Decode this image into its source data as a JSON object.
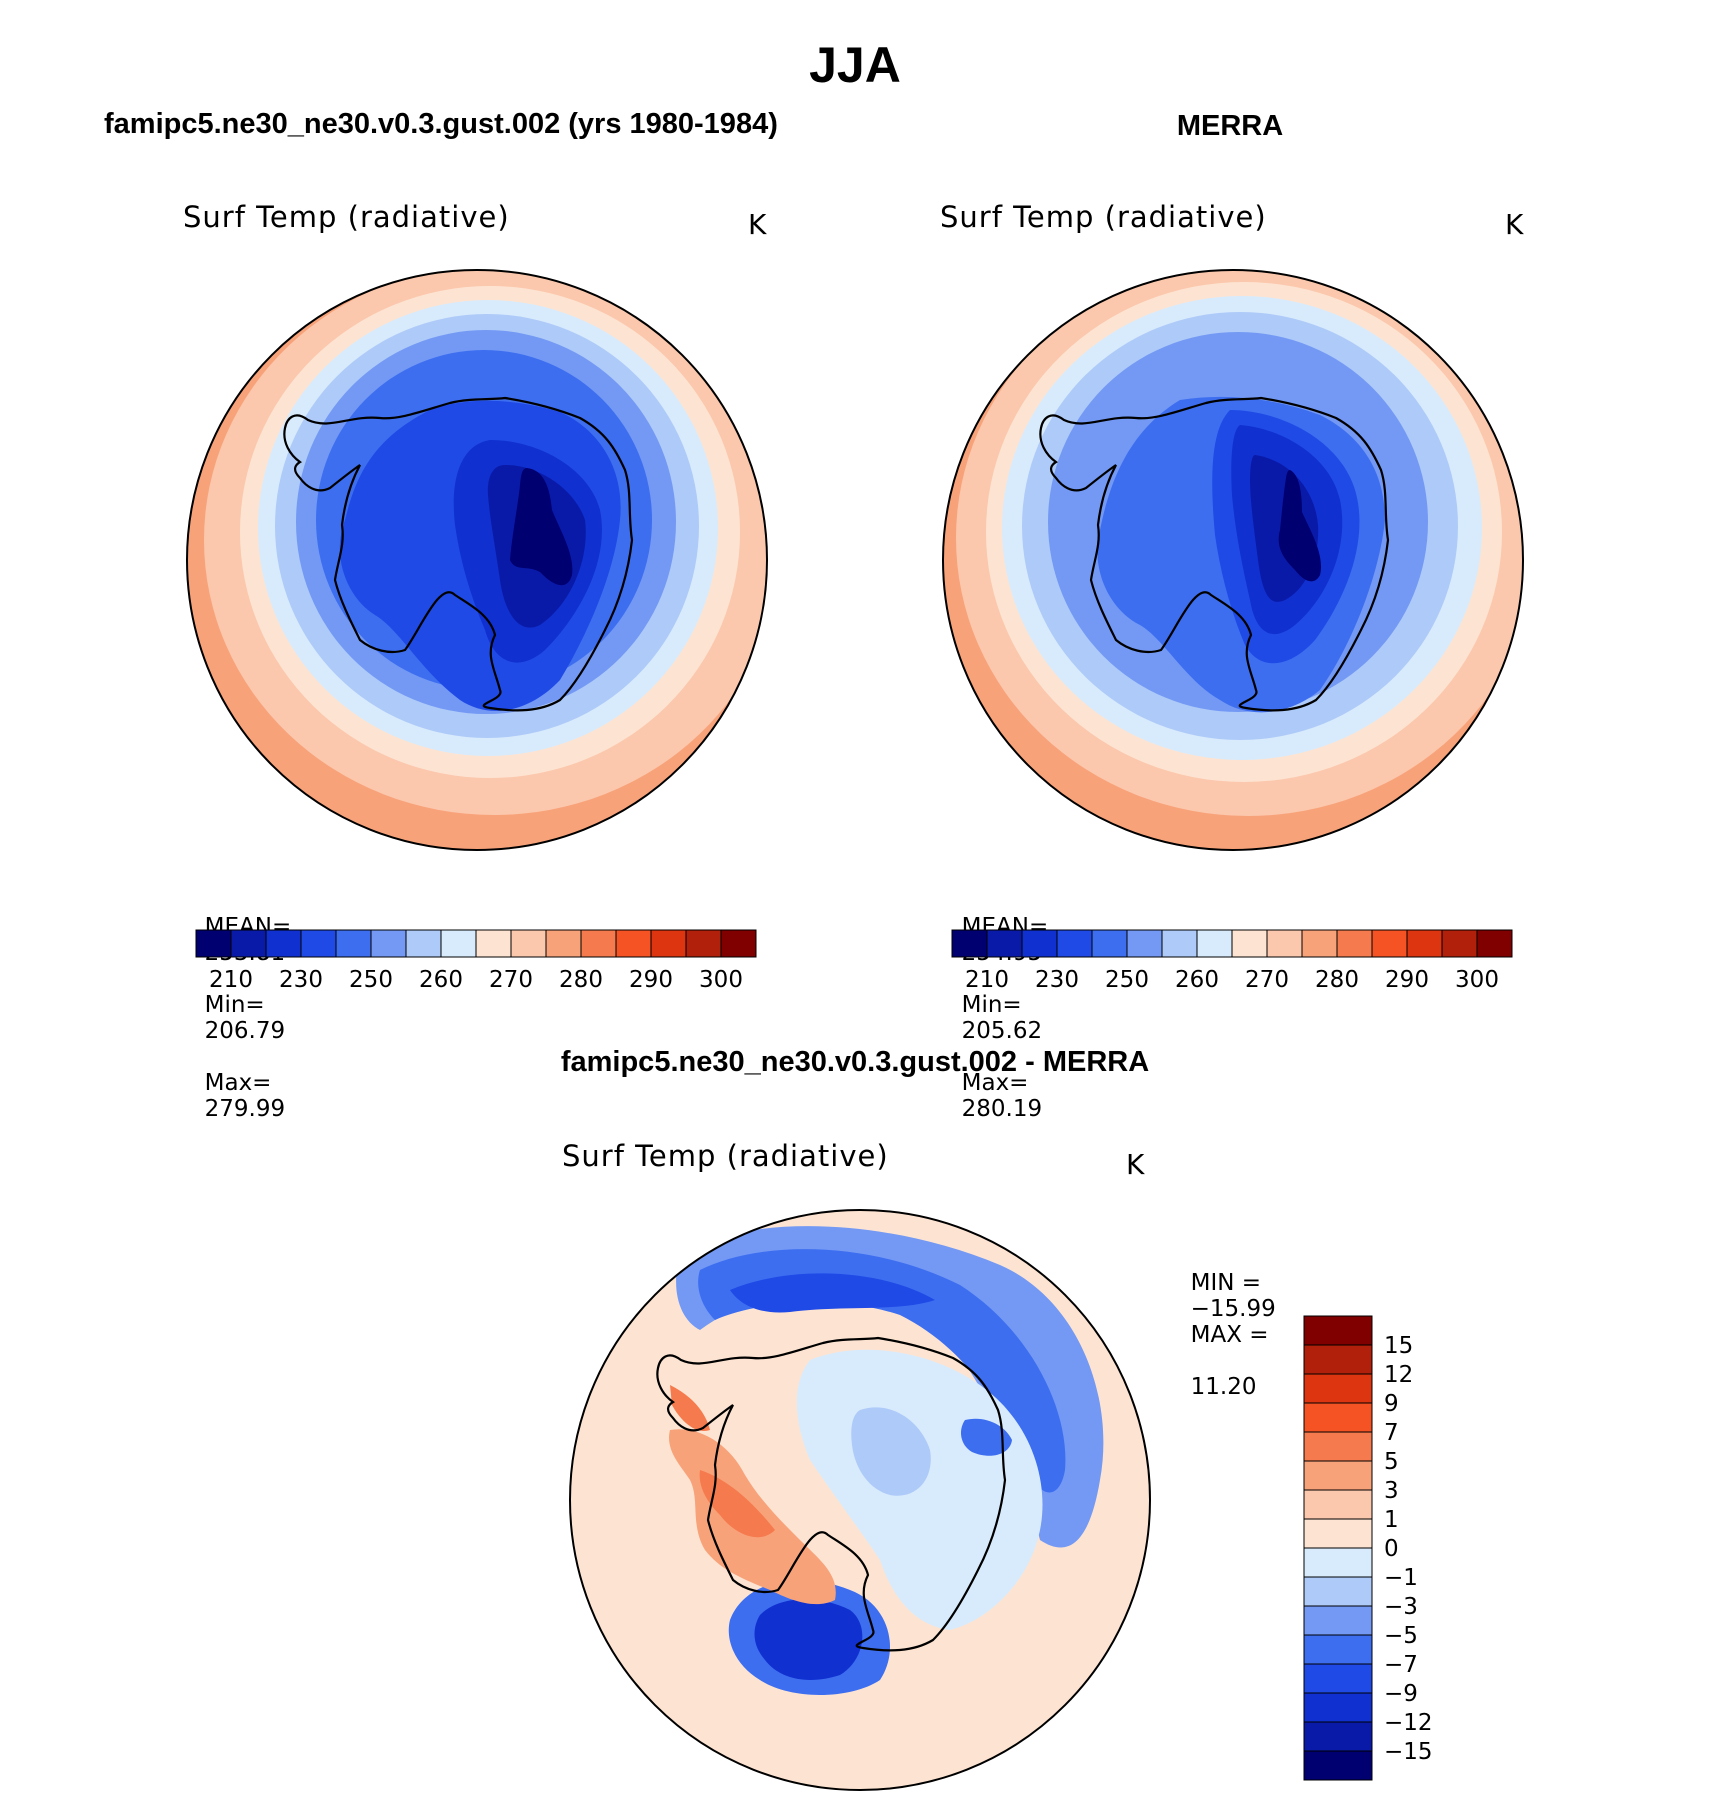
{
  "figure": {
    "season": "JJA",
    "panels": [
      {
        "id": "model",
        "title": "famipc5.ne30_ne30.v0.3.gust.002 (yrs 1980-1984)",
        "variable": "Surf Temp (radiative)",
        "units": "K",
        "stats": {
          "mean_label": "MEAN=",
          "mean": "253.81",
          "min_label": "Min=",
          "min": "206.79",
          "max_label": "Max=",
          "max": "279.99"
        }
      },
      {
        "id": "obs",
        "title": "MERRA",
        "variable": "Surf Temp (radiative)",
        "units": "K",
        "stats": {
          "mean_label": "MEAN=",
          "mean": "254.95",
          "min_label": "Min=",
          "min": "205.62",
          "max_label": "Max=",
          "max": "280.19"
        }
      },
      {
        "id": "diff",
        "title": "famipc5.ne30_ne30.v0.3.gust.002 - MERRA",
        "variable": "Surf Temp (radiative)",
        "units": "K",
        "stats": {
          "min_label": "MIN =",
          "min": "−15.99",
          "max_label": "MAX =",
          "max": "11.20"
        }
      }
    ]
  },
  "colorbars": {
    "absolute": {
      "colors": [
        "#000070",
        "#0a1aa8",
        "#1030d0",
        "#1f4ae6",
        "#3d6ef0",
        "#7399f4",
        "#aecaf8",
        "#d8ebfc",
        "#fde4d2",
        "#fbc8ad",
        "#f8a27a",
        "#f57a4d",
        "#f55323",
        "#dc3510",
        "#b0200a",
        "#800000"
      ],
      "tick_labels": [
        "210",
        "230",
        "250",
        "260",
        "270",
        "280",
        "290",
        "300"
      ]
    },
    "difference": {
      "colors": [
        "#000070",
        "#0a1aa8",
        "#1030d0",
        "#1f4ae6",
        "#3d6ef0",
        "#7399f4",
        "#aecaf8",
        "#d8ebfc",
        "#fde4d2",
        "#fbc8ad",
        "#f8a27a",
        "#f57a4d",
        "#f55323",
        "#dc3510",
        "#b0200a",
        "#800000"
      ],
      "tick_labels": [
        "−15",
        "−12",
        "−9",
        "−7",
        "−5",
        "−3",
        "−1",
        "0",
        "1",
        "3",
        "5",
        "7",
        "9",
        "12",
        "15"
      ]
    }
  }
}
